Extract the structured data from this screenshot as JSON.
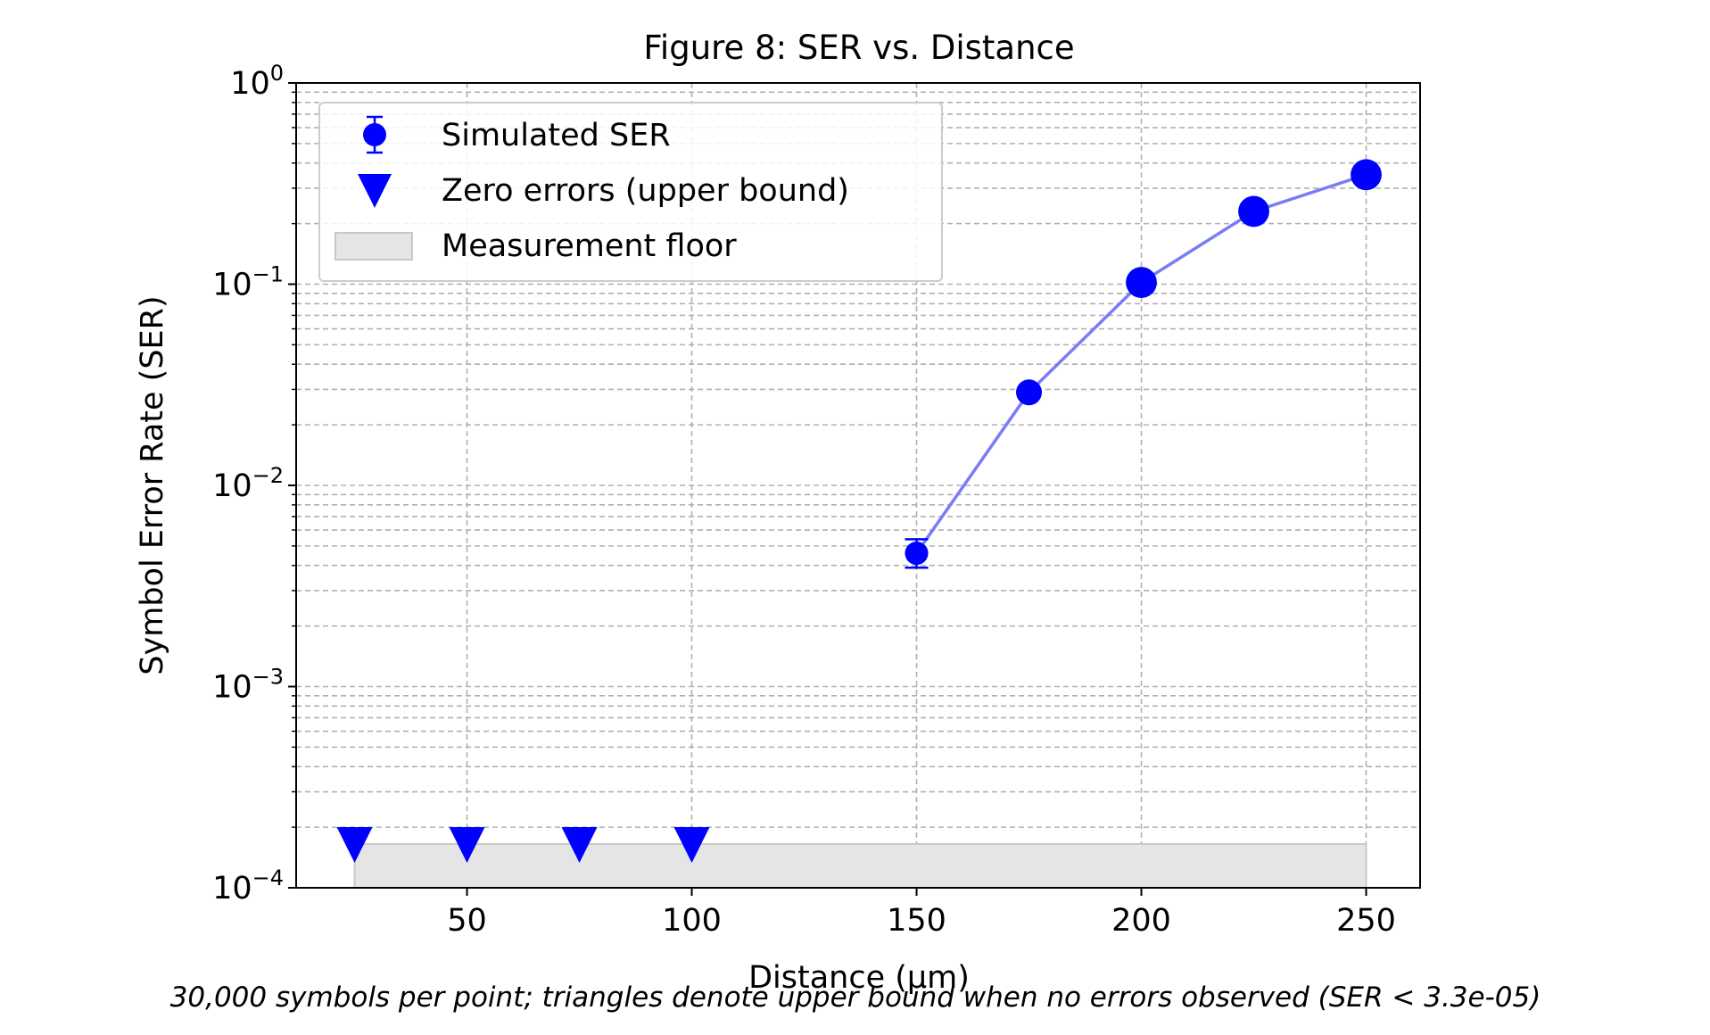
{
  "chart_data": {
    "type": "line",
    "title": "Figure 8: SER vs. Distance",
    "xlabel": "Distance (μm)",
    "ylabel": "Symbol Error Rate (SER)",
    "caption": "30,000 symbols per point; triangles denote upper bound when no errors observed (SER < 3.3e-05)",
    "x_scale": "linear",
    "y_scale": "log",
    "xlim": [
      12,
      262
    ],
    "ylim": [
      0.0001,
      1
    ],
    "x_ticks": [
      {
        "value": 50,
        "label": "50"
      },
      {
        "value": 100,
        "label": "100"
      },
      {
        "value": 150,
        "label": "150"
      },
      {
        "value": 200,
        "label": "200"
      },
      {
        "value": 250,
        "label": "250"
      }
    ],
    "y_ticks": [
      {
        "value": 1,
        "base": "10",
        "exp": "0"
      },
      {
        "value": 0.1,
        "base": "10",
        "exp": "−1"
      },
      {
        "value": 0.01,
        "base": "10",
        "exp": "−2"
      },
      {
        "value": 0.001,
        "base": "10",
        "exp": "−3"
      },
      {
        "value": 0.0001,
        "base": "10",
        "exp": "−4"
      }
    ],
    "grid": true,
    "legend_position": "top-left",
    "series": [
      {
        "name": "Simulated SER",
        "kind": "errorbar-line",
        "color": "#0000ff",
        "line_color": "#7b7bf5",
        "x": [
          150,
          175,
          200,
          225,
          250
        ],
        "y": [
          0.0046,
          0.029,
          0.102,
          0.23,
          0.35
        ],
        "y_err_low": [
          0.0039,
          0.029,
          0.102,
          0.23,
          0.35
        ],
        "y_err_high": [
          0.0054,
          0.029,
          0.102,
          0.23,
          0.35
        ],
        "marker_size": [
          9,
          10,
          12,
          12,
          12
        ]
      },
      {
        "name": "Zero errors (upper bound)",
        "kind": "marker",
        "marker": "triangle-down",
        "color": "#0000ff",
        "x": [
          25,
          50,
          75,
          100
        ],
        "y": [
          0.000165,
          0.000165,
          0.000165,
          0.000165
        ]
      },
      {
        "name": "Measurement floor",
        "kind": "band",
        "color": "#e5e5e5",
        "edge_color": "#c8c8c8",
        "x_range": [
          25,
          250
        ],
        "y_range": [
          0.0001,
          0.000165
        ]
      }
    ]
  }
}
